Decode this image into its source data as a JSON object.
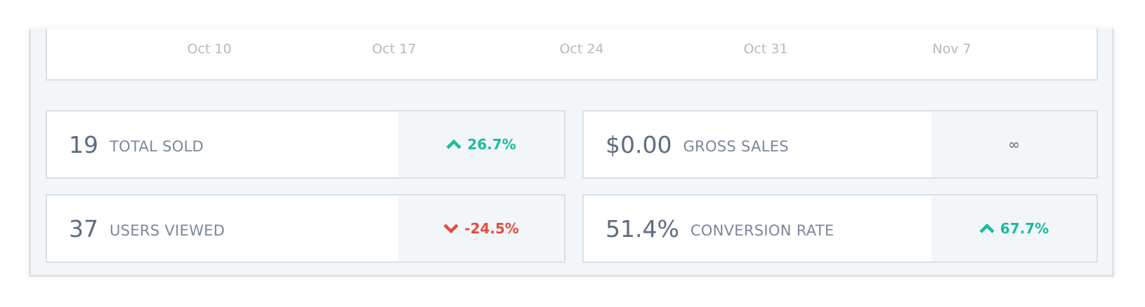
{
  "axis": {
    "ticks": [
      "Oct 10",
      "Oct 17",
      "Oct 24",
      "Oct 31",
      "Nov 7"
    ]
  },
  "stats": [
    {
      "value": "19",
      "label": "TOTAL SOLD",
      "change": "26.7%",
      "trend": "up",
      "icon": "chevron-up-icon"
    },
    {
      "value": "$0.00",
      "label": "GROSS SALES",
      "change": "∞",
      "trend": "neutral",
      "icon": ""
    },
    {
      "value": "37",
      "label": "USERS VIEWED",
      "change": "-24.5%",
      "trend": "down",
      "icon": "chevron-down-icon"
    },
    {
      "value": "51.4%",
      "label": "CONVERSION RATE",
      "change": "67.7%",
      "trend": "up",
      "icon": "chevron-up-icon"
    }
  ],
  "colors": {
    "up": "#1abc9c",
    "down": "#e74c3c",
    "neutral": "#7f8c8d"
  }
}
